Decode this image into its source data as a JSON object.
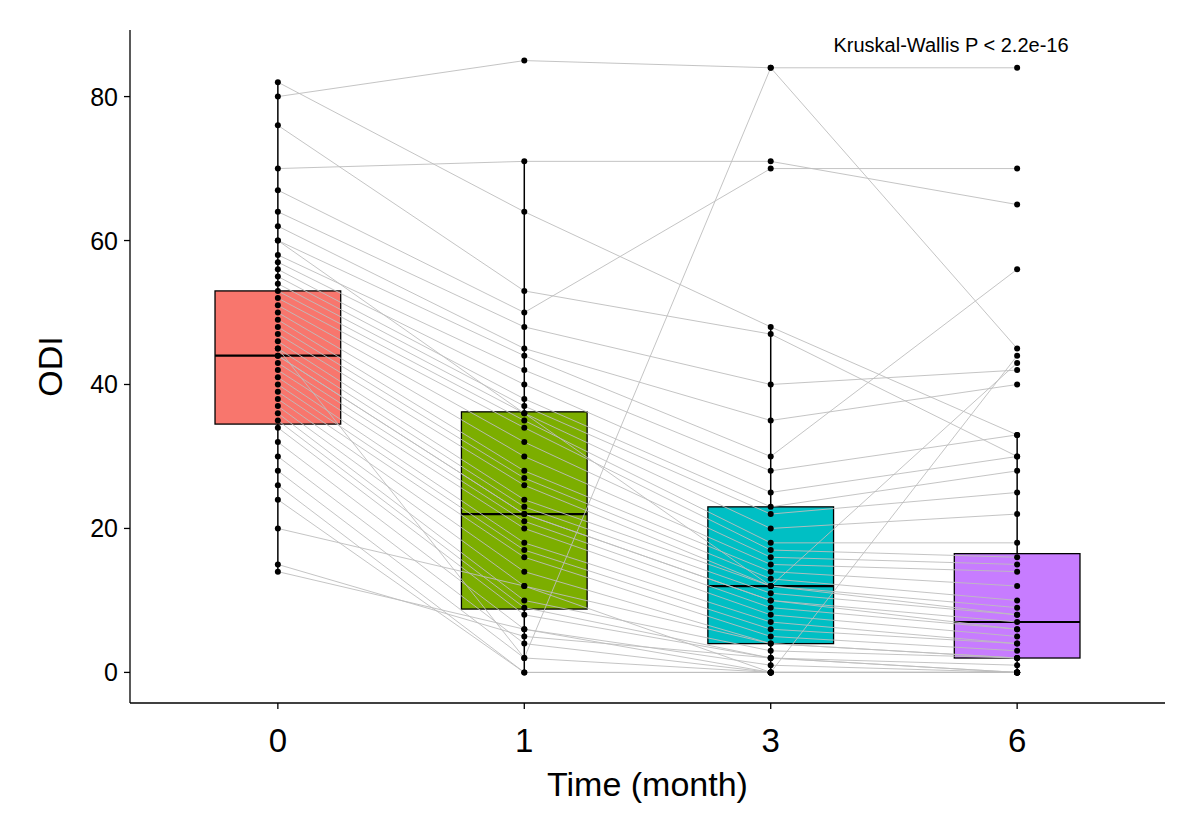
{
  "chart_data": {
    "type": "box",
    "annotation": "Kruskal-Wallis P < 2.2e-16",
    "x_label": "Time (month)",
    "y_label": "ODI",
    "categories": [
      "0",
      "1",
      "3",
      "6"
    ],
    "colors": [
      "#F8766D",
      "#7CAE00",
      "#00BFC4",
      "#C77CFF"
    ],
    "ylim": [
      -4.25,
      89.25
    ],
    "yticks": [
      0,
      20,
      40,
      60,
      80
    ],
    "boxes": [
      {
        "whisker_low": 14,
        "q1": 34.5,
        "median": 44,
        "q3": 53,
        "whisker_high": 82
      },
      {
        "whisker_low": 0,
        "q1": 8.8,
        "median": 22,
        "q3": 36.2,
        "whisker_high": 71
      },
      {
        "whisker_low": 0,
        "q1": 4,
        "median": 12,
        "q3": 23,
        "whisker_high": 48
      },
      {
        "whisker_low": 0,
        "q1": 2,
        "median": 7,
        "q3": 16.5,
        "whisker_high": 33
      }
    ],
    "subjects": [
      [
        80,
        85,
        84,
        84
      ],
      [
        70,
        71,
        71,
        65
      ],
      [
        82,
        64,
        48,
        33
      ],
      [
        76,
        53,
        47,
        30
      ],
      [
        67,
        50,
        70,
        70
      ],
      [
        64,
        48,
        40,
        42
      ],
      [
        62,
        45,
        35,
        40
      ],
      [
        60,
        44,
        30,
        56
      ],
      [
        58,
        42,
        28,
        33
      ],
      [
        57,
        40,
        25,
        30
      ],
      [
        56,
        38,
        23,
        28
      ],
      [
        55,
        37,
        22,
        25
      ],
      [
        54,
        36,
        20,
        22
      ],
      [
        53,
        35,
        18,
        18
      ],
      [
        52,
        34,
        17,
        16
      ],
      [
        51,
        32,
        16,
        15
      ],
      [
        50,
        30,
        15,
        14
      ],
      [
        49,
        28,
        14,
        12
      ],
      [
        48,
        27,
        13,
        10
      ],
      [
        47,
        26,
        12,
        9
      ],
      [
        46,
        24,
        12,
        8
      ],
      [
        45,
        23,
        11,
        8
      ],
      [
        44,
        22,
        10,
        7
      ],
      [
        44,
        22,
        10,
        6
      ],
      [
        43,
        21,
        9,
        6
      ],
      [
        42,
        20,
        8,
        5
      ],
      [
        41,
        18,
        7,
        4
      ],
      [
        40,
        17,
        6,
        4
      ],
      [
        39,
        16,
        5,
        3
      ],
      [
        38,
        14,
        4,
        2
      ],
      [
        37,
        12,
        4,
        2
      ],
      [
        36,
        10,
        3,
        2
      ],
      [
        35,
        9,
        2,
        1
      ],
      [
        34,
        8,
        2,
        0
      ],
      [
        32,
        6,
        1,
        0
      ],
      [
        30,
        4,
        0,
        0
      ],
      [
        28,
        2,
        0,
        0
      ],
      [
        26,
        0,
        0,
        0
      ],
      [
        24,
        0,
        0,
        0
      ],
      [
        20,
        12,
        0,
        44
      ],
      [
        14,
        6,
        0,
        0
      ],
      [
        15,
        5,
        2,
        0
      ],
      [
        45,
        2,
        84,
        45
      ],
      [
        60,
        36,
        12,
        43
      ]
    ]
  }
}
